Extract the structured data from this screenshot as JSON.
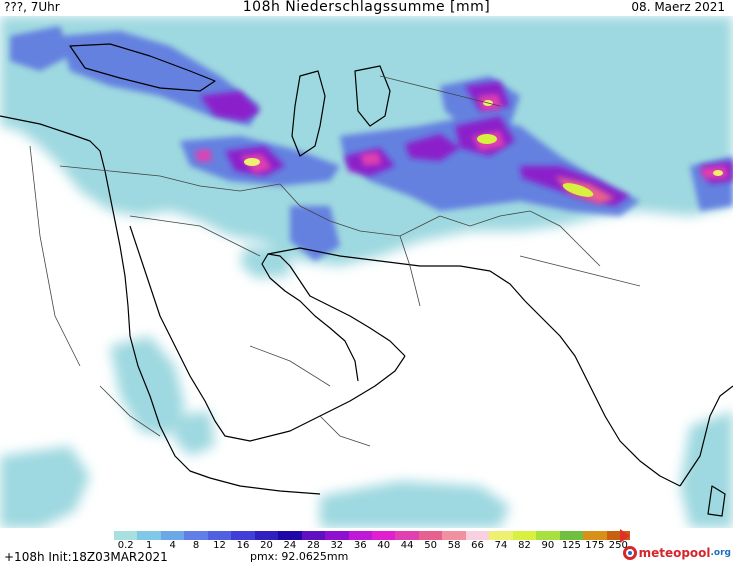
{
  "header": {
    "left": "???, 7Uhr",
    "title": "108h Niederschlagssumme [mm]",
    "right": "08. Maerz 2021"
  },
  "legend": {
    "ticks": [
      "0.2",
      "1",
      "4",
      "8",
      "12",
      "16",
      "20",
      "24",
      "28",
      "32",
      "36",
      "40",
      "44",
      "50",
      "58",
      "66",
      "74",
      "82",
      "90",
      "125",
      "175",
      "250"
    ],
    "colors": [
      "#a8e0e0",
      "#80c8e8",
      "#6aa8e8",
      "#6080e8",
      "#5060e0",
      "#4040d8",
      "#3020c0",
      "#2008a8",
      "#6010c0",
      "#9010d0",
      "#c018d8",
      "#e020d0",
      "#e040b0",
      "#e86090",
      "#f090a0",
      "#f8d0e0",
      "#f0f070",
      "#d8f040",
      "#a8e040",
      "#70c040",
      "#d89018",
      "#c86010"
    ],
    "arrow_color": "#e0302a"
  },
  "footer": {
    "init": "+108h  Init:18Z03MAR2021",
    "pmx": "pmx: 92.0625mm"
  },
  "logo": {
    "name": "meteopool",
    "tld": ".org"
  }
}
